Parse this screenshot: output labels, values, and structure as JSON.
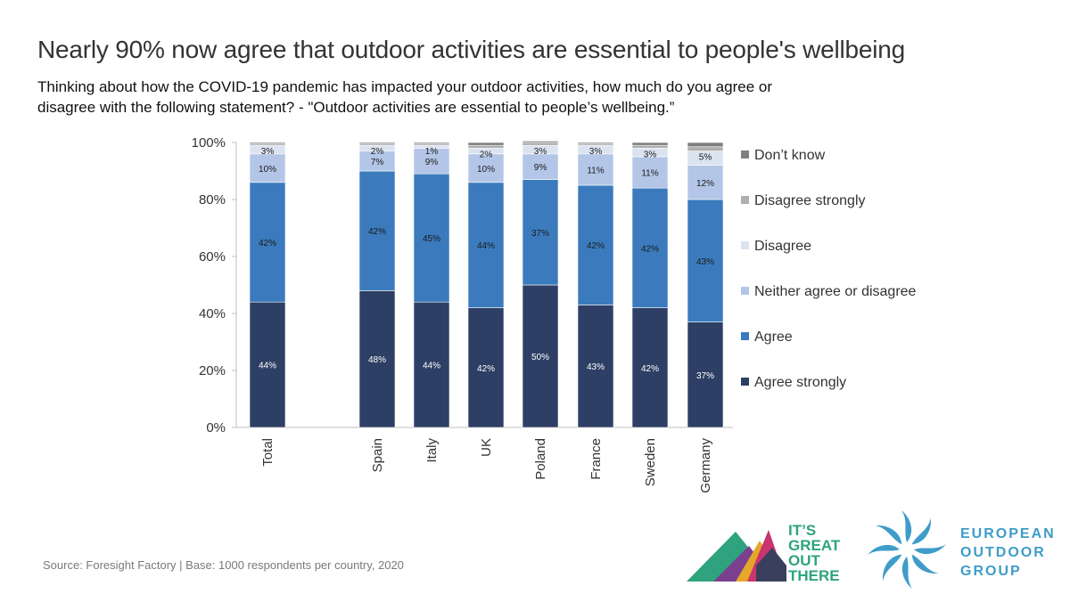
{
  "title": "Nearly 90% now agree that outdoor activities are essential to people's wellbeing",
  "subtitle": "Thinking about how the COVID-19 pandemic has impacted your outdoor activities, how much do you agree or disagree with the following statement? - \"Outdoor activities are essential to people’s wellbeing.”",
  "source": "Source: Foresight Factory | Base:  1000 respondents per country, 2020",
  "logos": {
    "igot_lines": [
      "IT’S",
      "GREAT",
      "OUT",
      "THERE"
    ],
    "eog_lines": [
      "EUROPEAN",
      "OUTDOOR",
      "GROUP"
    ]
  },
  "colors": {
    "agree_strongly": "#2e3f65",
    "agree": "#3b7bbd",
    "neither": "#b4c6e7",
    "disagree": "#dbe3f1",
    "disagree_strongly": "#aeaeae",
    "dont_know": "#7f7f7f",
    "igot_text": "#2ea37e",
    "eog_blue": "#3f9cc9"
  },
  "chart_data": {
    "type": "bar",
    "stacked": true,
    "categories": [
      "Total",
      "Spain",
      "Italy",
      "UK",
      "Poland",
      "France",
      "Sweden",
      "Germany"
    ],
    "ylim": [
      0,
      100
    ],
    "yticks": [
      "0%",
      "20%",
      "40%",
      "60%",
      "80%",
      "100%"
    ],
    "legend_position": "right",
    "series": [
      {
        "name": "Agree strongly",
        "values": [
          44,
          48,
          44,
          42,
          50,
          43,
          42,
          37
        ],
        "labels": [
          "44%",
          "48%",
          "44%",
          "42%",
          "50%",
          "43%",
          "42%",
          "37%"
        ]
      },
      {
        "name": "Agree",
        "values": [
          42,
          42,
          45,
          44,
          37,
          42,
          42,
          43
        ],
        "labels": [
          "42%",
          "42%",
          "45%",
          "44%",
          "37%",
          "42%",
          "42%",
          "43%"
        ]
      },
      {
        "name": "Neither agree or disagree",
        "values": [
          10,
          7,
          9,
          10,
          9,
          11,
          11,
          12
        ],
        "labels": [
          "10%",
          "7%",
          "9%",
          "10%",
          "9%",
          "11%",
          "11%",
          "12%"
        ]
      },
      {
        "name": "Disagree",
        "values": [
          3,
          2,
          1,
          2,
          3,
          3,
          3,
          5
        ],
        "labels": [
          "3%",
          "2%",
          "1%",
          "2%",
          "3%",
          "3%",
          "3%",
          "5%"
        ]
      },
      {
        "name": "Disagree strongly",
        "values": [
          0.5,
          0.5,
          0.5,
          1,
          1,
          0.5,
          1,
          1.5
        ],
        "labels": []
      },
      {
        "name": "Don’t know",
        "values": [
          0.5,
          0.5,
          0.5,
          1,
          0.5,
          0.5,
          1,
          1.5
        ],
        "labels": []
      }
    ]
  }
}
